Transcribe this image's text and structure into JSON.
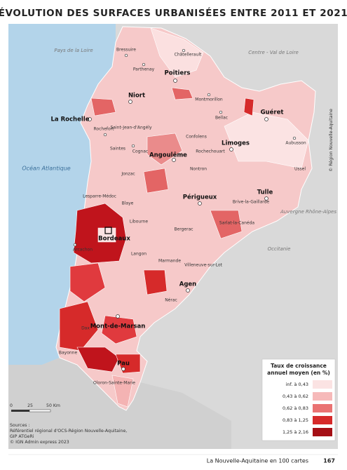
{
  "title": "ÉVOLUTION DES SURFACES URBANISÉES ENTRE 2011 ET 2021",
  "regions": [
    "Pays de la Loire",
    "Centre - Val de Loire",
    "Océan Atlantique",
    "Auvergne Rhône-Alpes",
    "Occitanie"
  ],
  "cities": [
    "Bressuire",
    "Châtellerault",
    "Parthenay",
    "Poitiers",
    "Niort",
    "Montmorillon",
    "La Rochelle",
    "Bellac",
    "Guéret",
    "Rochefort",
    "Saint-Jean-d'Angély",
    "Confolens",
    "Saintes",
    "Cognac",
    "Angoulême",
    "Rochechouart",
    "Limoges",
    "Aubusson",
    "Jonzac",
    "Nontron",
    "Ussel",
    "Périgueux",
    "Tulle",
    "Brive-la-Gaillarde",
    "Lesparre-Médoc",
    "Blaye",
    "Libourne",
    "Bergerac",
    "Sarlat-la-Canéda",
    "Bordeaux",
    "Arcachon",
    "Langon",
    "Marmande",
    "Villeneuve-sur-Lot",
    "Agen",
    "Nérac",
    "Mont-de-Marsan",
    "Dax",
    "Bayonne",
    "Pau",
    "Oloron-Sainte-Marie"
  ],
  "legend": {
    "title": [
      "Taux de croissance",
      "annuel moyen (en %)"
    ],
    "items": [
      "inf. à 0,43",
      "0,43 à 0,62",
      "0,62 à 0,83",
      "0,83 à 1,25",
      "1,25 à 2,16"
    ]
  },
  "scale": [
    "0",
    "25",
    "50 Km"
  ],
  "sources": [
    "Sources :",
    "Référentiel régional d'OCS-Région Nouvelle-Aquitaine,",
    "GIP ATGeRi",
    "© IGN Admin express 2023"
  ],
  "credit": "© Région Nouvelle-Aquitaine",
  "footer": {
    "text": "La Nouvelle-Aquitaine en 100 cartes",
    "page": "167"
  }
}
